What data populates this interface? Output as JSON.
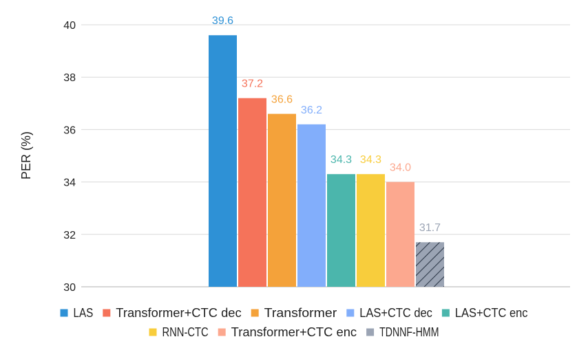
{
  "chart_data": {
    "type": "bar",
    "title": "",
    "xlabel": "",
    "ylabel": "PER (%)",
    "ylim": [
      30,
      40
    ],
    "yticks": [
      30,
      32,
      34,
      36,
      38,
      40
    ],
    "grid": true,
    "legend_position": "bottom",
    "series": [
      {
        "name": "LAS",
        "value": 39.6,
        "label": "39.6",
        "color": "#2e91d6",
        "label_color": "#2e91d6",
        "pattern": "solid"
      },
      {
        "name": "Transformer+CTC dec",
        "value": 37.2,
        "label": "37.2",
        "color": "#f5735a",
        "label_color": "#f5735a",
        "pattern": "solid"
      },
      {
        "name": "Transformer",
        "value": 36.6,
        "label": "36.6",
        "color": "#f4a23a",
        "label_color": "#f4a23a",
        "pattern": "solid"
      },
      {
        "name": "LAS+CTC dec",
        "value": 36.2,
        "label": "36.2",
        "color": "#82aefb",
        "label_color": "#82aefb",
        "pattern": "solid"
      },
      {
        "name": "LAS+CTC enc",
        "value": 34.3,
        "label": "34.3",
        "color": "#4bb6ac",
        "label_color": "#4bb6ac",
        "pattern": "solid"
      },
      {
        "name": "RNN-CTC",
        "value": 34.3,
        "label": "34.3",
        "color": "#f8cd3c",
        "label_color": "#f8cd3c",
        "pattern": "solid"
      },
      {
        "name": "Transformer+CTC enc",
        "value": 34.0,
        "label": "34.0",
        "color": "#fca88f",
        "label_color": "#fca88f",
        "pattern": "solid"
      },
      {
        "name": "TDNNF-HMM",
        "value": 31.7,
        "label": "31.7",
        "color": "#9ba4b4",
        "label_color": "#9ba4b4",
        "pattern": "hatched"
      }
    ]
  }
}
